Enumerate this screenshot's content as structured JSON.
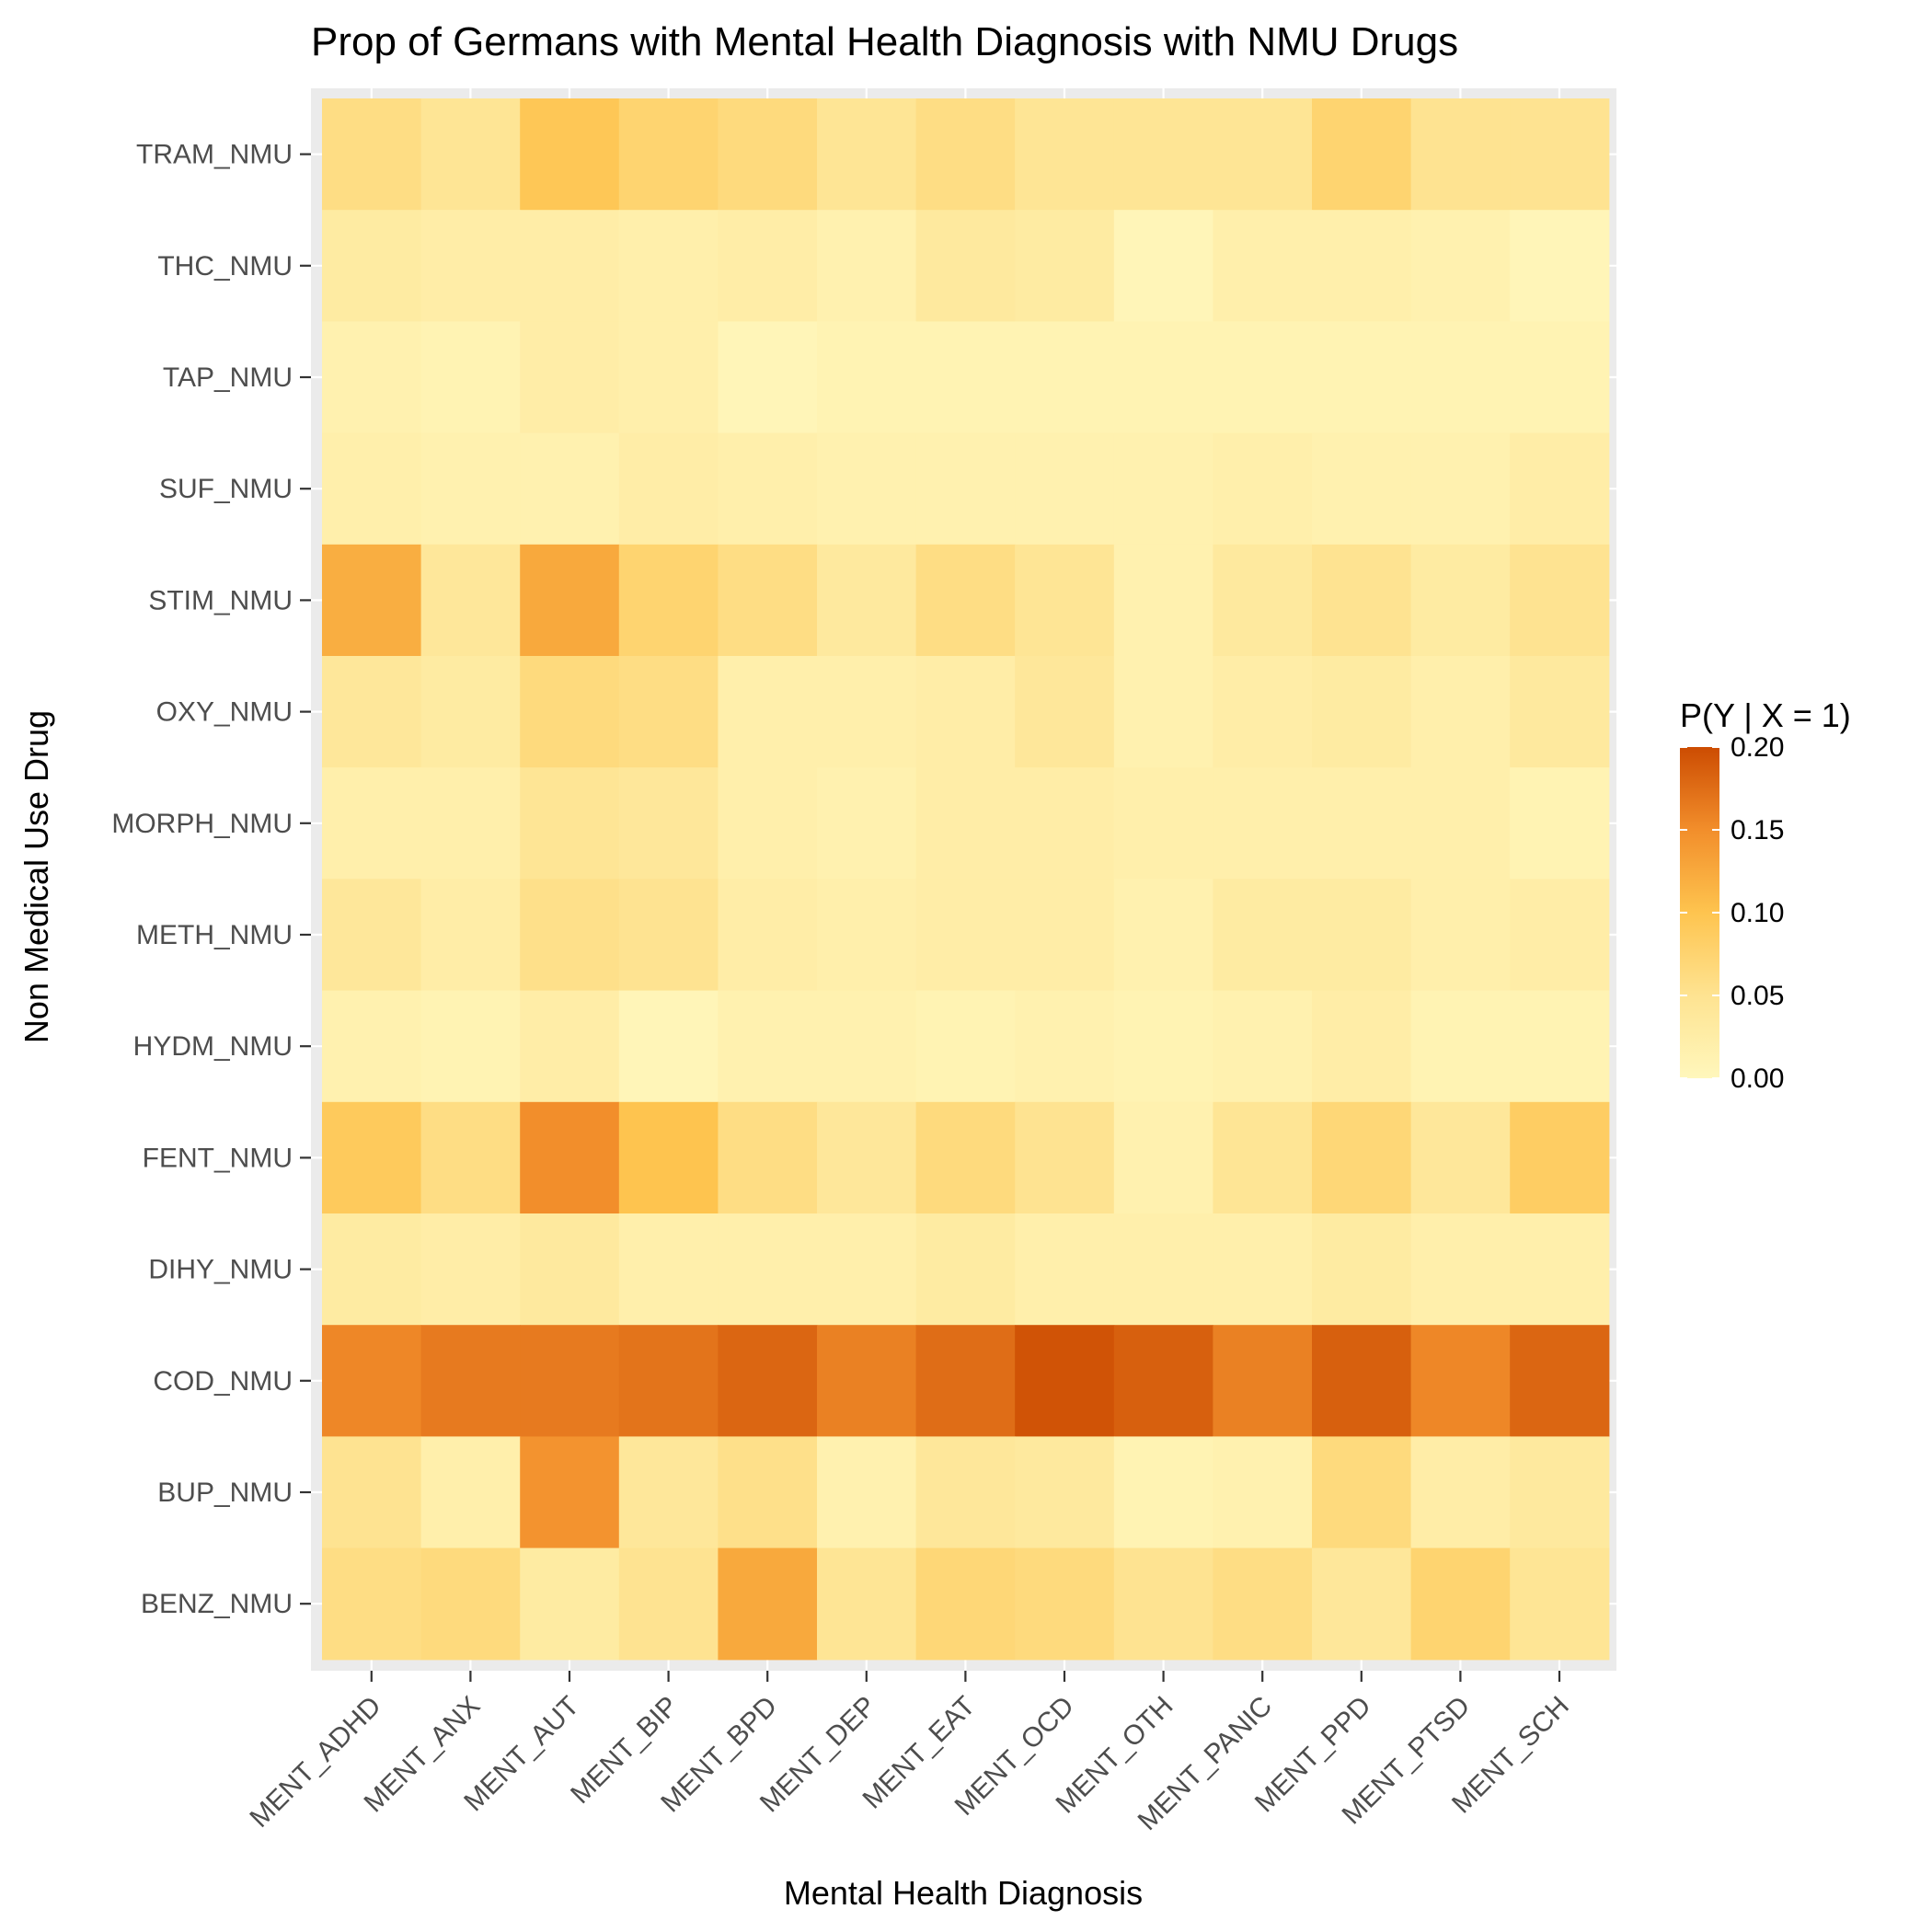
{
  "chart_data": {
    "type": "heatmap",
    "title": "Prop of Germans with Mental Health Diagnosis with NMU Drugs",
    "xlabel": "Mental Health Diagnosis",
    "ylabel": "Non Medical Use Drug",
    "x": [
      "MENT_ADHD",
      "MENT_ANX",
      "MENT_AUT",
      "MENT_BIP",
      "MENT_BPD",
      "MENT_DEP",
      "MENT_EAT",
      "MENT_OCD",
      "MENT_OTH",
      "MENT_PANIC",
      "MENT_PPD",
      "MENT_PTSD",
      "MENT_SCH"
    ],
    "y": [
      "TRAM_NMU",
      "THC_NMU",
      "TAP_NMU",
      "SUF_NMU",
      "STIM_NMU",
      "OXY_NMU",
      "MORPH_NMU",
      "METH_NMU",
      "HYDM_NMU",
      "FENT_NMU",
      "DIHY_NMU",
      "COD_NMU",
      "BUP_NMU",
      "BENZ_NMU"
    ],
    "values": [
      [
        0.06,
        0.045,
        0.095,
        0.075,
        0.065,
        0.045,
        0.06,
        0.045,
        0.045,
        0.045,
        0.075,
        0.05,
        0.05
      ],
      [
        0.03,
        0.025,
        0.025,
        0.02,
        0.025,
        0.015,
        0.035,
        0.03,
        0.005,
        0.02,
        0.02,
        0.015,
        0.005
      ],
      [
        0.015,
        0.01,
        0.025,
        0.02,
        0.005,
        0.01,
        0.01,
        0.01,
        0.01,
        0.01,
        0.01,
        0.01,
        0.01
      ],
      [
        0.02,
        0.015,
        0.015,
        0.025,
        0.02,
        0.015,
        0.015,
        0.015,
        0.015,
        0.02,
        0.015,
        0.015,
        0.025
      ],
      [
        0.12,
        0.04,
        0.125,
        0.075,
        0.06,
        0.035,
        0.06,
        0.045,
        0.015,
        0.035,
        0.05,
        0.03,
        0.05
      ],
      [
        0.04,
        0.03,
        0.065,
        0.06,
        0.02,
        0.02,
        0.025,
        0.04,
        0.015,
        0.025,
        0.03,
        0.02,
        0.035
      ],
      [
        0.02,
        0.02,
        0.045,
        0.04,
        0.02,
        0.015,
        0.025,
        0.025,
        0.02,
        0.02,
        0.02,
        0.02,
        0.01
      ],
      [
        0.04,
        0.025,
        0.055,
        0.05,
        0.025,
        0.02,
        0.025,
        0.025,
        0.015,
        0.03,
        0.03,
        0.02,
        0.025
      ],
      [
        0.015,
        0.01,
        0.025,
        0.005,
        0.015,
        0.015,
        0.01,
        0.015,
        0.01,
        0.015,
        0.025,
        0.01,
        0.01
      ],
      [
        0.09,
        0.06,
        0.15,
        0.1,
        0.06,
        0.04,
        0.065,
        0.05,
        0.015,
        0.045,
        0.07,
        0.04,
        0.085
      ],
      [
        0.03,
        0.025,
        0.035,
        0.02,
        0.02,
        0.02,
        0.03,
        0.02,
        0.02,
        0.02,
        0.03,
        0.02,
        0.02
      ],
      [
        0.155,
        0.165,
        0.165,
        0.17,
        0.18,
        0.16,
        0.175,
        0.195,
        0.185,
        0.16,
        0.185,
        0.155,
        0.18
      ],
      [
        0.05,
        0.02,
        0.145,
        0.04,
        0.055,
        0.015,
        0.04,
        0.035,
        0.01,
        0.015,
        0.065,
        0.025,
        0.035
      ],
      [
        0.06,
        0.065,
        0.03,
        0.05,
        0.125,
        0.045,
        0.07,
        0.065,
        0.05,
        0.06,
        0.04,
        0.075,
        0.045
      ]
    ],
    "legend": {
      "title": "P(Y | X = 1)",
      "ticks": [
        "0.00",
        "0.05",
        "0.10",
        "0.15",
        "0.20"
      ],
      "range": [
        0,
        0.2
      ],
      "colors": [
        "#fff7bc",
        "#fee391",
        "#fec44f",
        "#f28e2b",
        "#cc4c02"
      ],
      "placement": "right"
    },
    "grid": true,
    "panel_background": "#ebebeb"
  }
}
